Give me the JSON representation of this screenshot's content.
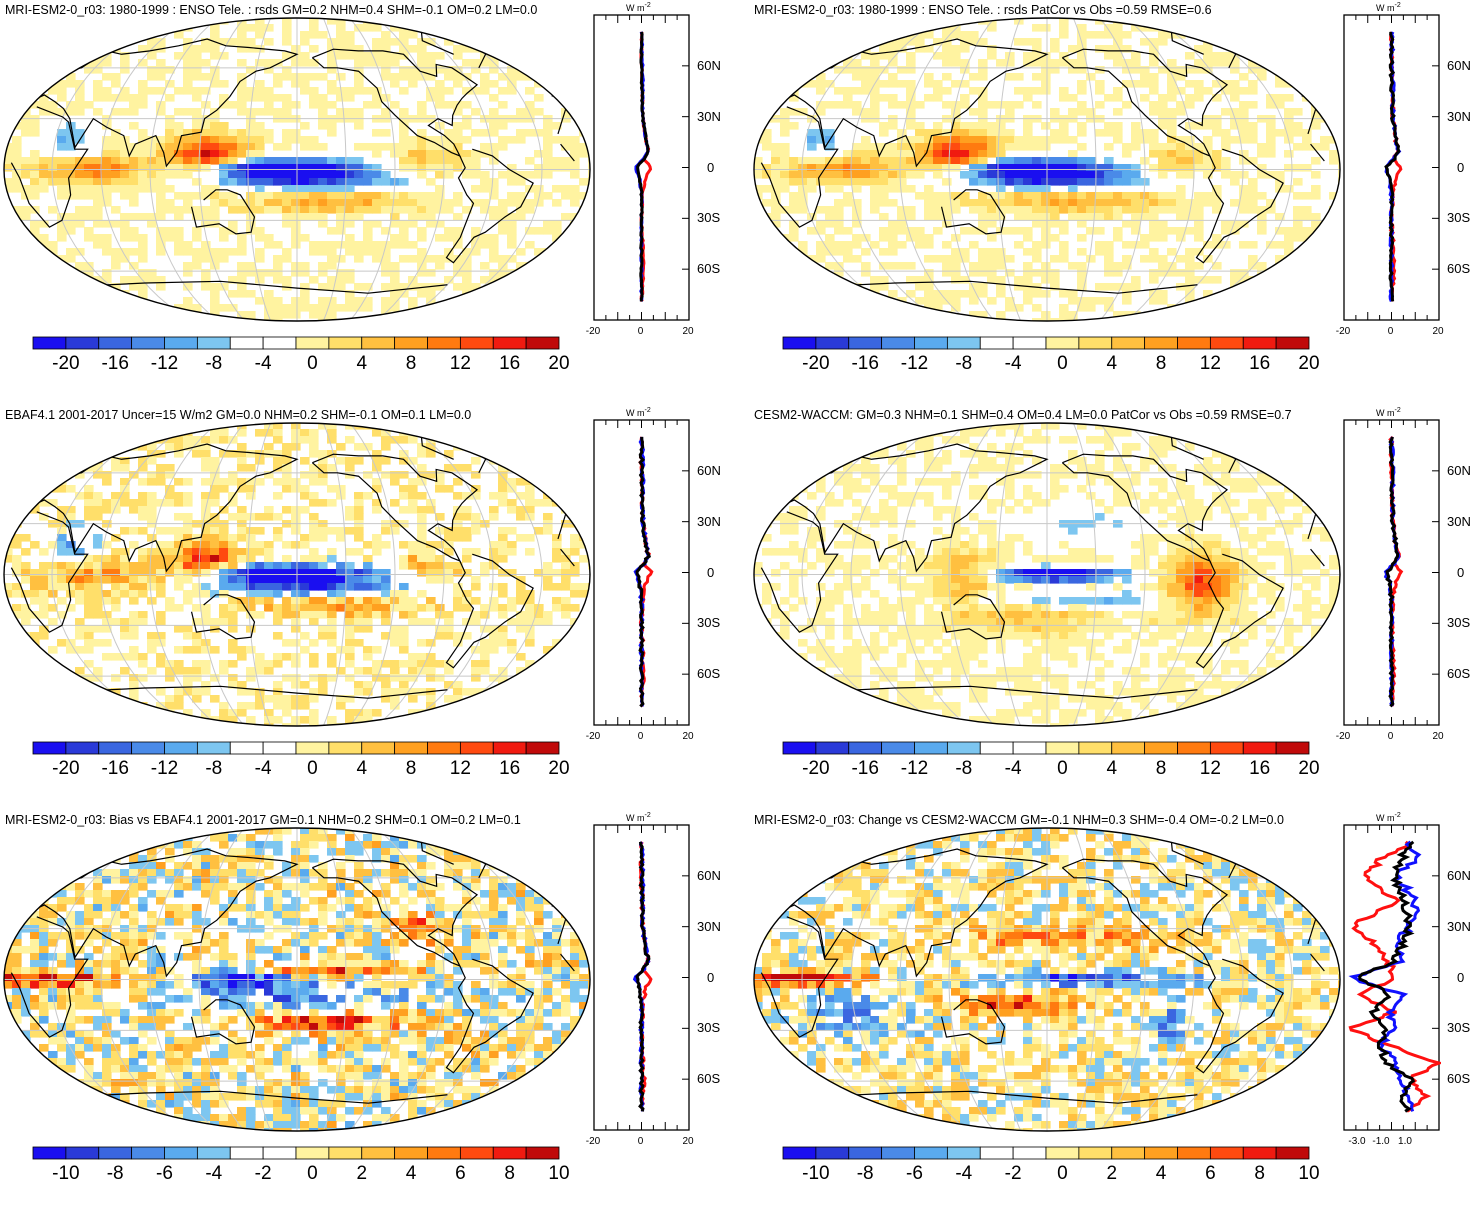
{
  "panels": [
    {
      "title": "MRI-ESM2-0_r03: 1980-1999 : ENSO Tele. : rsds GM=0.2 NHM=0.4 SHM=-0.1 OM=0.2 LM=0.0",
      "scale": 20,
      "zonal_ticks": [
        "-20",
        "0",
        "20"
      ],
      "zonal_x_range": [
        -20,
        20
      ],
      "cbar_labels": [
        "-20",
        "-16",
        "-12",
        "-8",
        "-4",
        "0",
        "4",
        "8",
        "12",
        "16",
        "20"
      ],
      "pattern": "model"
    },
    {
      "title": "MRI-ESM2-0_r03: 1980-1999 : ENSO Tele. : rsds PatCor vs Obs =0.59 RMSE=0.6",
      "scale": 20,
      "zonal_ticks": [
        "-20",
        "0",
        "20"
      ],
      "zonal_x_range": [
        -20,
        20
      ],
      "cbar_labels": [
        "-20",
        "-16",
        "-12",
        "-8",
        "-4",
        "0",
        "4",
        "8",
        "12",
        "16",
        "20"
      ],
      "pattern": "model"
    },
    {
      "title": "EBAF4.1 2001-2017 Uncer=15 W/m2 GM=0.0 NHM=0.2 SHM=-0.1 OM=0.1 LM=0.0",
      "scale": 20,
      "zonal_ticks": [
        "-20",
        "0",
        "20"
      ],
      "zonal_x_range": [
        -20,
        20
      ],
      "cbar_labels": [
        "-20",
        "-16",
        "-12",
        "-8",
        "-4",
        "0",
        "4",
        "8",
        "12",
        "16",
        "20"
      ],
      "pattern": "obs"
    },
    {
      "title": "CESM2-WACCM: GM=0.3 NHM=0.1 SHM=0.4 OM=0.4 LM=0.0 PatCor vs Obs =0.59 RMSE=0.7",
      "scale": 20,
      "zonal_ticks": [
        "-20",
        "0",
        "20"
      ],
      "zonal_x_range": [
        -20,
        20
      ],
      "cbar_labels": [
        "-20",
        "-16",
        "-12",
        "-8",
        "-4",
        "0",
        "4",
        "8",
        "12",
        "16",
        "20"
      ],
      "pattern": "cesm"
    },
    {
      "title": "MRI-ESM2-0_r03: Bias vs EBAF4.1 2001-2017 GM=0.1 NHM=0.2 SHM=0.1 OM=0.2 LM=0.1",
      "scale": 10,
      "zonal_ticks": [
        "-20",
        "0",
        "20"
      ],
      "zonal_x_range": [
        -20,
        20
      ],
      "cbar_labels": [
        "-10",
        "-8",
        "-6",
        "-4",
        "-2",
        "0",
        "2",
        "4",
        "6",
        "8",
        "10"
      ],
      "pattern": "bias"
    },
    {
      "title": "MRI-ESM2-0_r03: Change vs CESM2-WACCM GM=-0.1 NHM=0.3 SHM=-0.4 OM=-0.2 LM=0.0",
      "scale": 10,
      "zonal_ticks": [
        "-3.0",
        "-1.0",
        "1.0"
      ],
      "zonal_x_range": [
        -4,
        2.5
      ],
      "cbar_labels": [
        "-10",
        "-8",
        "-6",
        "-4",
        "-2",
        "0",
        "2",
        "4",
        "6",
        "8",
        "10"
      ],
      "pattern": "change"
    }
  ],
  "zonal_lat_labels": [
    "60N",
    "30N",
    "0",
    "30S",
    "60S"
  ],
  "zonal_units": "W m",
  "zonal_units_sup": "-2",
  "colors": {
    "palette": [
      "#1a0ff0",
      "#2a3ad8",
      "#3a66e0",
      "#4a8ae8",
      "#5aaaee",
      "#7dc6f0",
      "#ffffff",
      "#ffffff",
      "#fff3a0",
      "#ffdf6a",
      "#ffc040",
      "#ffa020",
      "#ff7a10",
      "#ff4a10",
      "#f01a10",
      "#c00a0a"
    ],
    "land_outline": "#000000",
    "grid": "#c8c8c8",
    "series_red": "#ff1010",
    "series_blue": "#1010ff",
    "series_black": "#000000"
  },
  "chart_data": [
    {
      "type": "heatmap",
      "title": "MRI-ESM2-0_r03: 1980-1999 : ENSO Tele. : rsds GM=0.2 NHM=0.4 SHM=-0.1 OM=0.2 LM=0.0",
      "colorbar_range": [
        -20,
        20
      ],
      "zonal_series": [
        {
          "name": "red",
          "lat": [
            80,
            60,
            30,
            15,
            10,
            5,
            0,
            -5,
            -15,
            -30,
            -60,
            -80
          ],
          "values": [
            0,
            0,
            0.5,
            2,
            3,
            1,
            4,
            2,
            0.5,
            0,
            1,
            0
          ]
        },
        {
          "name": "blue",
          "lat": [
            80,
            60,
            30,
            15,
            10,
            5,
            0,
            -5,
            -15,
            -30,
            -60,
            -80
          ],
          "values": [
            0,
            0.5,
            0.5,
            2,
            3,
            1,
            -3,
            -1,
            0,
            0,
            0,
            0
          ]
        },
        {
          "name": "black",
          "lat": [
            80,
            60,
            30,
            15,
            10,
            5,
            0,
            -5,
            -15,
            -30,
            -60,
            -80
          ],
          "values": [
            0,
            0,
            0.5,
            2,
            3,
            1,
            -2,
            -1,
            0,
            0,
            0,
            0
          ]
        }
      ]
    },
    {
      "type": "heatmap",
      "title": "MRI-ESM2-0_r03: 1980-1999 : ENSO Tele. : rsds PatCor vs Obs =0.59 RMSE=0.6",
      "colorbar_range": [
        -20,
        20
      ]
    },
    {
      "type": "heatmap",
      "title": "EBAF4.1 2001-2017 Uncer=15 W/m2 GM=0.0 NHM=0.2 SHM=-0.1 OM=0.1 LM=0.0",
      "colorbar_range": [
        -20,
        20
      ]
    },
    {
      "type": "heatmap",
      "title": "CESM2-WACCM: GM=0.3 NHM=0.1 SHM=0.4 OM=0.4 LM=0.0 PatCor vs Obs =0.59 RMSE=0.7",
      "colorbar_range": [
        -20,
        20
      ]
    },
    {
      "type": "heatmap",
      "title": "MRI-ESM2-0_r03: Bias vs EBAF4.1 2001-2017 GM=0.1 NHM=0.2 SHM=0.1 OM=0.2 LM=0.1",
      "colorbar_range": [
        -10,
        10
      ]
    },
    {
      "type": "heatmap",
      "title": "MRI-ESM2-0_r03: Change vs CESM2-WACCM GM=-0.1 NHM=0.3 SHM=-0.4 OM=-0.2 LM=0.0",
      "colorbar_range": [
        -10,
        10
      ],
      "zonal_series": [
        {
          "name": "red",
          "lat": [
            80,
            70,
            60,
            45,
            30,
            20,
            10,
            0,
            -10,
            -20,
            -30,
            -40,
            -50,
            -60,
            -70,
            -80
          ],
          "values": [
            0.5,
            -1.5,
            -2.5,
            -0.5,
            -3.5,
            -2,
            -1,
            -0.5,
            -3,
            -0.5,
            -3.5,
            -1,
            2.5,
            0.5,
            1.5,
            0.5
          ]
        },
        {
          "name": "blue",
          "lat": [
            80,
            70,
            60,
            45,
            30,
            20,
            10,
            0,
            -10,
            -20,
            -30,
            -40,
            -50,
            -60,
            -70,
            -80
          ],
          "values": [
            0.5,
            1,
            -0.5,
            1,
            0.5,
            -0.5,
            0,
            -3.5,
            0,
            -1,
            -0.5,
            -1.5,
            -0.5,
            0,
            0.5,
            0.5
          ]
        },
        {
          "name": "black",
          "lat": [
            80,
            70,
            60,
            45,
            30,
            20,
            10,
            0,
            -10,
            -20,
            -30,
            -40,
            -50,
            -60,
            -70,
            -80
          ],
          "values": [
            0.5,
            0,
            -0.5,
            0,
            0.5,
            0,
            -0.5,
            -3,
            -1,
            -2,
            -1,
            -1.5,
            -1,
            0.5,
            0,
            0.5
          ]
        }
      ]
    }
  ]
}
